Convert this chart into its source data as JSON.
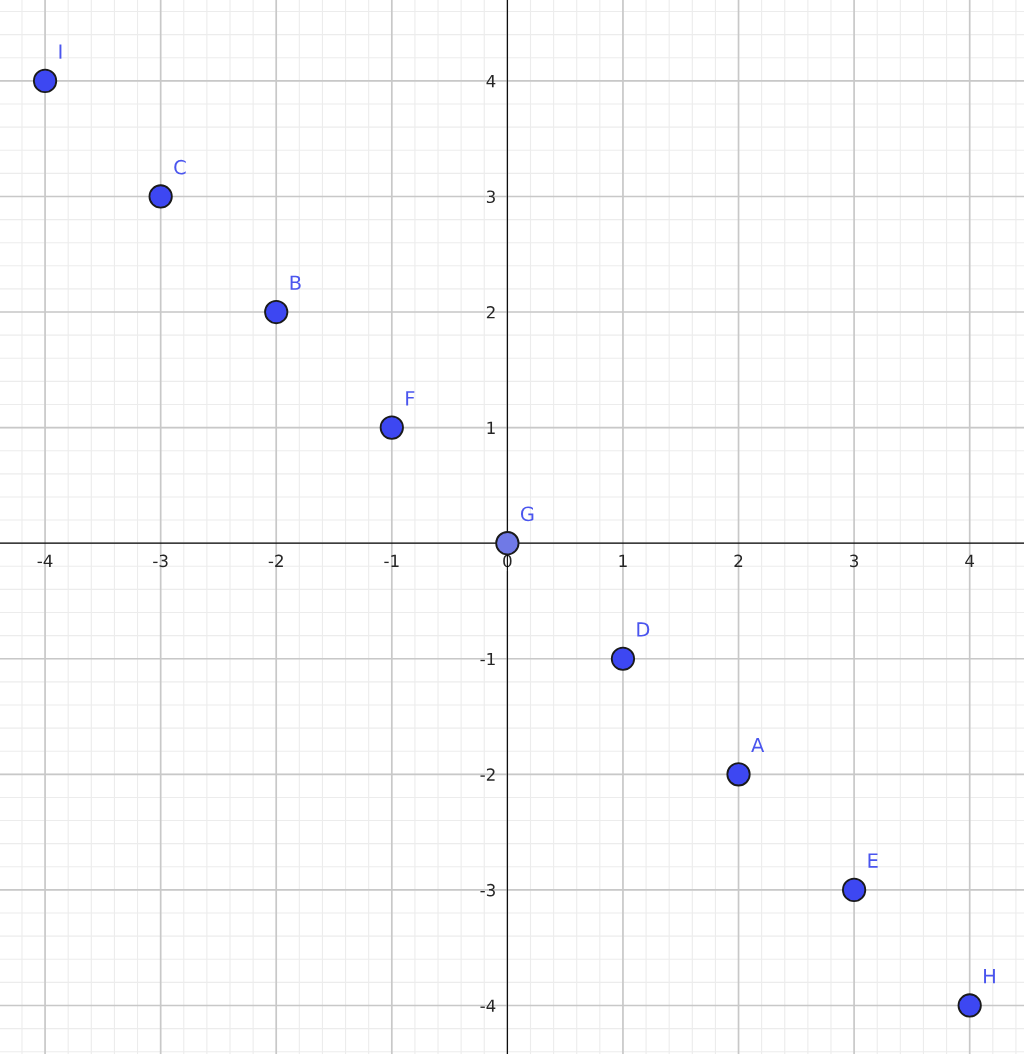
{
  "chart_data": {
    "type": "scatter",
    "x": [
      -4,
      -3,
      -2,
      -1,
      0,
      1,
      2,
      3,
      4
    ],
    "values": [
      4,
      3,
      2,
      1,
      0,
      -1,
      -2,
      -3,
      -4
    ],
    "colors": [
      "#3d47f2",
      "#3d47f2",
      "#3d47f2",
      "#3d47f2",
      "#7079e6",
      "#3d47f2",
      "#3d47f2",
      "#3d47f2",
      "#3d47f2"
    ],
    "marker": "circle",
    "xlim": [
      -4.39,
      4.47
    ],
    "ylim": [
      -4.42,
      4.7
    ],
    "xticks": [
      -4,
      -3,
      -2,
      -1,
      0,
      1,
      2,
      3,
      4
    ],
    "yticks": [
      -4,
      -3,
      -2,
      -1,
      1,
      2,
      3,
      4
    ],
    "grid": true,
    "annotations": [
      {
        "text": "I",
        "x": -4,
        "y": 4
      },
      {
        "text": "C",
        "x": -3,
        "y": 3
      },
      {
        "text": "B",
        "x": -2,
        "y": 2
      },
      {
        "text": "F",
        "x": -1,
        "y": 1
      },
      {
        "text": "G",
        "x": 0,
        "y": 0
      },
      {
        "text": "D",
        "x": 1,
        "y": -1
      },
      {
        "text": "A",
        "x": 2,
        "y": -2
      },
      {
        "text": "E",
        "x": 3,
        "y": -3
      },
      {
        "text": "H",
        "x": 4,
        "y": -4
      }
    ]
  }
}
